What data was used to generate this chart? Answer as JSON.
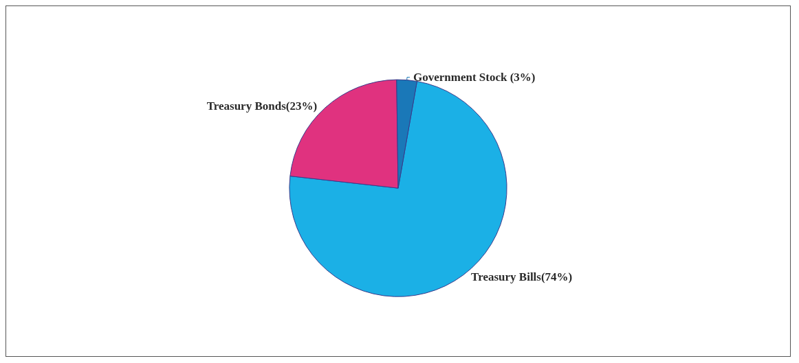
{
  "chart_data": {
    "type": "pie",
    "categories": [
      "Treasury Bills(74%)",
      "Treasury Bonds(23%)",
      "Government Stock (3%)"
    ],
    "values": [
      74,
      23,
      3
    ],
    "colors": [
      "#1bb0e6",
      "#e0327f",
      "#1a78b8"
    ],
    "legend": false
  }
}
